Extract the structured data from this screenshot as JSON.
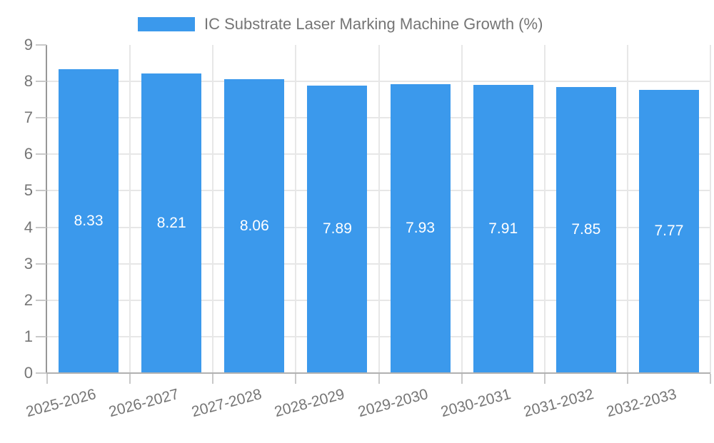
{
  "legend": {
    "label": "IC Substrate Laser Marking Machine Growth (%)",
    "swatch_color": "#3b99ec"
  },
  "chart_data": {
    "type": "bar",
    "title": "IC Substrate Laser Marking Machine Growth (%)",
    "categories": [
      "2025-2026",
      "2026-2027",
      "2027-2028",
      "2028-2029",
      "2029-2030",
      "2030-2031",
      "2031-2032",
      "2032-2033"
    ],
    "values": [
      8.33,
      8.21,
      8.06,
      7.89,
      7.93,
      7.91,
      7.85,
      7.77
    ],
    "bar_labels": [
      "8.33",
      "8.21",
      "8.06",
      "7.89",
      "7.93",
      "7.91",
      "7.85",
      "7.77"
    ],
    "xlabel": "",
    "ylabel": "",
    "ylim": [
      0,
      9
    ],
    "y_ticks": [
      0,
      1,
      2,
      3,
      4,
      5,
      6,
      7,
      8,
      9
    ],
    "grid": true,
    "legend_position": "top",
    "bar_color": "#3b99ec",
    "bar_label_color": "#ffffff",
    "axis_text_color": "#757575",
    "grid_color": "#e7e7e7"
  }
}
